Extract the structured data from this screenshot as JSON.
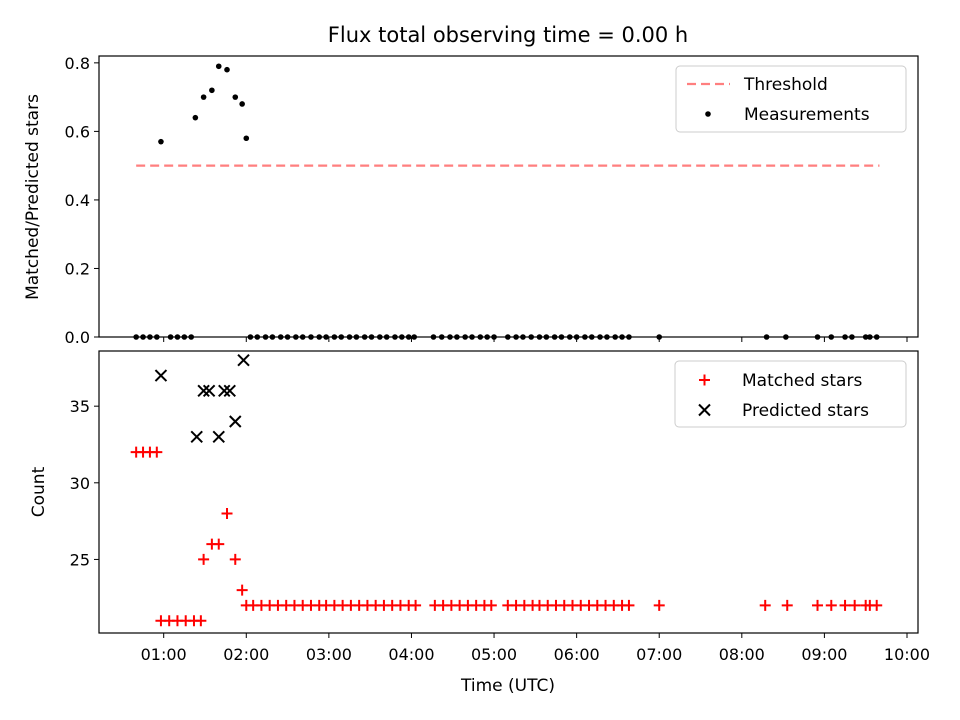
{
  "chart_data": [
    {
      "type": "scatter",
      "title": "Flux total observing time = 0.00 h",
      "xlabel": "",
      "ylabel": "Matched/Predicted stars",
      "xlim": [
        "00:13",
        "10:08"
      ],
      "ylim": [
        0,
        0.82
      ],
      "yticks": [
        "0.0",
        "0.2",
        "0.4",
        "0.6",
        "0.8"
      ],
      "legend_position": "top-right",
      "threshold": {
        "name": "Threshold",
        "value": 0.5,
        "x_start": "00:40",
        "x_end": "09:40",
        "color": "#ff7f7f"
      },
      "series": [
        {
          "name": "Measurements",
          "color": "#000000",
          "x": [
            "00:58",
            "01:23",
            "01:29",
            "01:35",
            "01:40",
            "01:46",
            "01:52",
            "01:57",
            "02:00",
            "00:40",
            "00:45",
            "00:50",
            "00:55",
            "01:05",
            "01:10",
            "01:15",
            "01:20",
            "02:03",
            "02:08",
            "02:14",
            "02:19",
            "02:25",
            "02:30",
            "02:36",
            "02:41",
            "02:47",
            "02:53",
            "02:58",
            "03:04",
            "03:09",
            "03:15",
            "03:20",
            "03:26",
            "03:31",
            "03:37",
            "03:42",
            "03:48",
            "03:53",
            "03:58",
            "04:02",
            "04:16",
            "04:22",
            "04:28",
            "04:33",
            "04:39",
            "04:44",
            "04:50",
            "04:55",
            "05:00",
            "05:10",
            "05:16",
            "05:21",
            "05:27",
            "05:33",
            "05:38",
            "05:44",
            "05:49",
            "05:55",
            "06:00",
            "06:06",
            "06:11",
            "06:17",
            "06:22",
            "06:28",
            "06:33",
            "06:38",
            "07:00",
            "08:18",
            "08:32",
            "08:55",
            "09:05",
            "09:15",
            "09:20",
            "09:30",
            "09:33",
            "09:38"
          ],
          "y": [
            0.57,
            0.64,
            0.7,
            0.72,
            0.79,
            0.78,
            0.7,
            0.68,
            0.58,
            0,
            0,
            0,
            0,
            0,
            0,
            0,
            0,
            0,
            0,
            0,
            0,
            0,
            0,
            0,
            0,
            0,
            0,
            0,
            0,
            0,
            0,
            0,
            0,
            0,
            0,
            0,
            0,
            0,
            0,
            0,
            0,
            0,
            0,
            0,
            0,
            0,
            0,
            0,
            0,
            0,
            0,
            0,
            0,
            0,
            0,
            0,
            0,
            0,
            0,
            0,
            0,
            0,
            0,
            0,
            0,
            0,
            0,
            0,
            0,
            0,
            0,
            0,
            0,
            0,
            0,
            0
          ]
        }
      ]
    },
    {
      "type": "scatter",
      "title": "",
      "xlabel": "Time (UTC)",
      "ylabel": "Count",
      "xlim": [
        "00:13",
        "10:08"
      ],
      "ylim": [
        20.2,
        38.6
      ],
      "yticks": [
        "25",
        "30",
        "35"
      ],
      "xticks": [
        "01:00",
        "02:00",
        "03:00",
        "04:00",
        "05:00",
        "06:00",
        "07:00",
        "08:00",
        "09:00",
        "10:00"
      ],
      "legend_position": "top-right",
      "series": [
        {
          "name": "Matched stars",
          "color": "#ff0000",
          "marker": "plus",
          "x": [
            "00:40",
            "00:45",
            "00:50",
            "00:55",
            "00:58",
            "01:04",
            "01:10",
            "01:16",
            "01:22",
            "01:27",
            "01:29",
            "01:35",
            "01:40",
            "01:46",
            "01:52",
            "01:57",
            "02:00",
            "02:05",
            "02:11",
            "02:17",
            "02:23",
            "02:29",
            "02:35",
            "02:41",
            "02:47",
            "02:53",
            "02:58",
            "03:04",
            "03:10",
            "03:16",
            "03:22",
            "03:28",
            "03:34",
            "03:40",
            "03:46",
            "03:52",
            "03:58",
            "04:03",
            "04:17",
            "04:23",
            "04:29",
            "04:35",
            "04:41",
            "04:47",
            "04:53",
            "04:58",
            "05:10",
            "05:16",
            "05:22",
            "05:28",
            "05:33",
            "05:39",
            "05:45",
            "05:51",
            "05:57",
            "06:03",
            "06:09",
            "06:15",
            "06:21",
            "06:27",
            "06:33",
            "06:38",
            "07:00",
            "08:17",
            "08:33",
            "08:55",
            "09:05",
            "09:15",
            "09:22",
            "09:30",
            "09:33",
            "09:38"
          ],
          "y": [
            32,
            32,
            32,
            32,
            21,
            21,
            21,
            21,
            21,
            21,
            25,
            26,
            26,
            28,
            25,
            23,
            22,
            22,
            22,
            22,
            22,
            22,
            22,
            22,
            22,
            22,
            22,
            22,
            22,
            22,
            22,
            22,
            22,
            22,
            22,
            22,
            22,
            22,
            22,
            22,
            22,
            22,
            22,
            22,
            22,
            22,
            22,
            22,
            22,
            22,
            22,
            22,
            22,
            22,
            22,
            22,
            22,
            22,
            22,
            22,
            22,
            22,
            22,
            22,
            22,
            22,
            22,
            22,
            22,
            22,
            22,
            22
          ]
        },
        {
          "name": "Predicted stars",
          "color": "#000000",
          "marker": "x",
          "x": [
            "00:58",
            "01:24",
            "01:29",
            "01:33",
            "01:40",
            "01:44",
            "01:48",
            "01:52",
            "01:58"
          ],
          "y": [
            37,
            33,
            36,
            36,
            33,
            36,
            36,
            34,
            38
          ]
        }
      ]
    }
  ]
}
